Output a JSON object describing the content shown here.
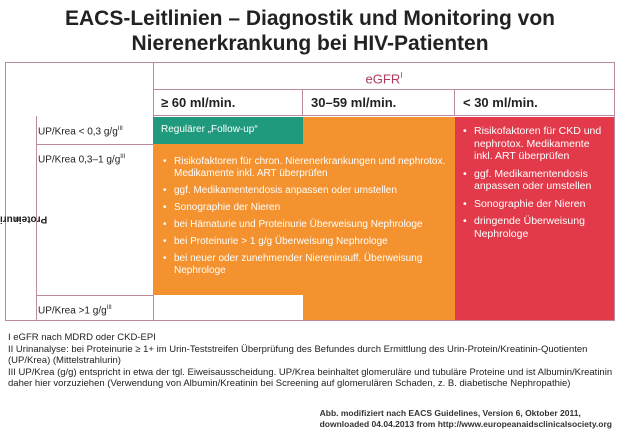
{
  "title": {
    "line1": "EACS-Leitlinien – Diagnostik und Monitoring von",
    "line2": "Nierenerkrankung bei HIV-Patienten"
  },
  "table": {
    "egfr_header": "eGFR",
    "egfr_sup": "I",
    "columns": [
      "≥ 60 ml/min.",
      "30–59 ml/min.",
      "< 30 ml/min."
    ],
    "proteinuria_label": "Proteinurie",
    "proteinuria_sup": "II",
    "rows": [
      {
        "label": "UP/Krea < 0,3 g/g",
        "sup": "III"
      },
      {
        "label": "UP/Krea 0,3–1 g/g",
        "sup": "III"
      },
      {
        "label": "UP/Krea >1 g/g",
        "sup": "III"
      }
    ],
    "green_cell": "Regulärer „Follow-up“",
    "orange_bullets": [
      "Risikofaktoren für chron. Nierenerkrankungen und nephrotox. Medikamente inkl. ART überprüfen",
      "ggf. Medikamentendosis anpassen oder umstellen",
      "Sonographie der Nieren",
      "bei Hämaturie und Proteinurie Überweisung Nephrologe",
      "bei Proteinurie > 1 g/g Überweisung Nephrologe",
      "bei neuer oder zunehmender Niereninsuff. Überweisung Nephrologe"
    ],
    "red_bullets": [
      "Risikofaktoren für CKD und nephrotox. Medikamente inkl. ART überprüfen",
      "ggf. Medikamentendosis anpassen oder umstellen",
      "Sonographie der Nieren",
      "dringende Überweisung Nephrologe"
    ],
    "colors": {
      "green": "#1f9a7d",
      "orange": "#f3922f",
      "red": "#e23a4a",
      "border": "#b98aa0",
      "egfr_text": "#b03a5b"
    }
  },
  "footnotes": [
    "I    eGFR nach MDRD oder CKD-EPI",
    "II   Urinanalyse:  bei Proteinurie ≥ 1+ im Urin-Teststreifen Überprüfung des Befundes durch Ermittlung des Urin-Protein/Kreatinin-Quotienten (UP/Krea) (Mittelstrahlurin)",
    "III  UP/Krea (g/g) entspricht in etwa der tgl. Eiweisausscheidung. UP/Krea beinhaltet  glomeruläre und tubuläre Proteine und ist Albumin/Kreatinin daher hier vorzuziehen (Verwendung von Albumin/Kreatinin bei Screening auf glomerulären Schaden, z. B. diabetische Nephropathie)"
  ],
  "source": {
    "line1": "Abb. modifiziert nach EACS Guidelines, Version 6, Oktober 2011,",
    "line2": "downloaded 04.04.2013 from http://www.europeanaidsclinicalsociety.org"
  }
}
